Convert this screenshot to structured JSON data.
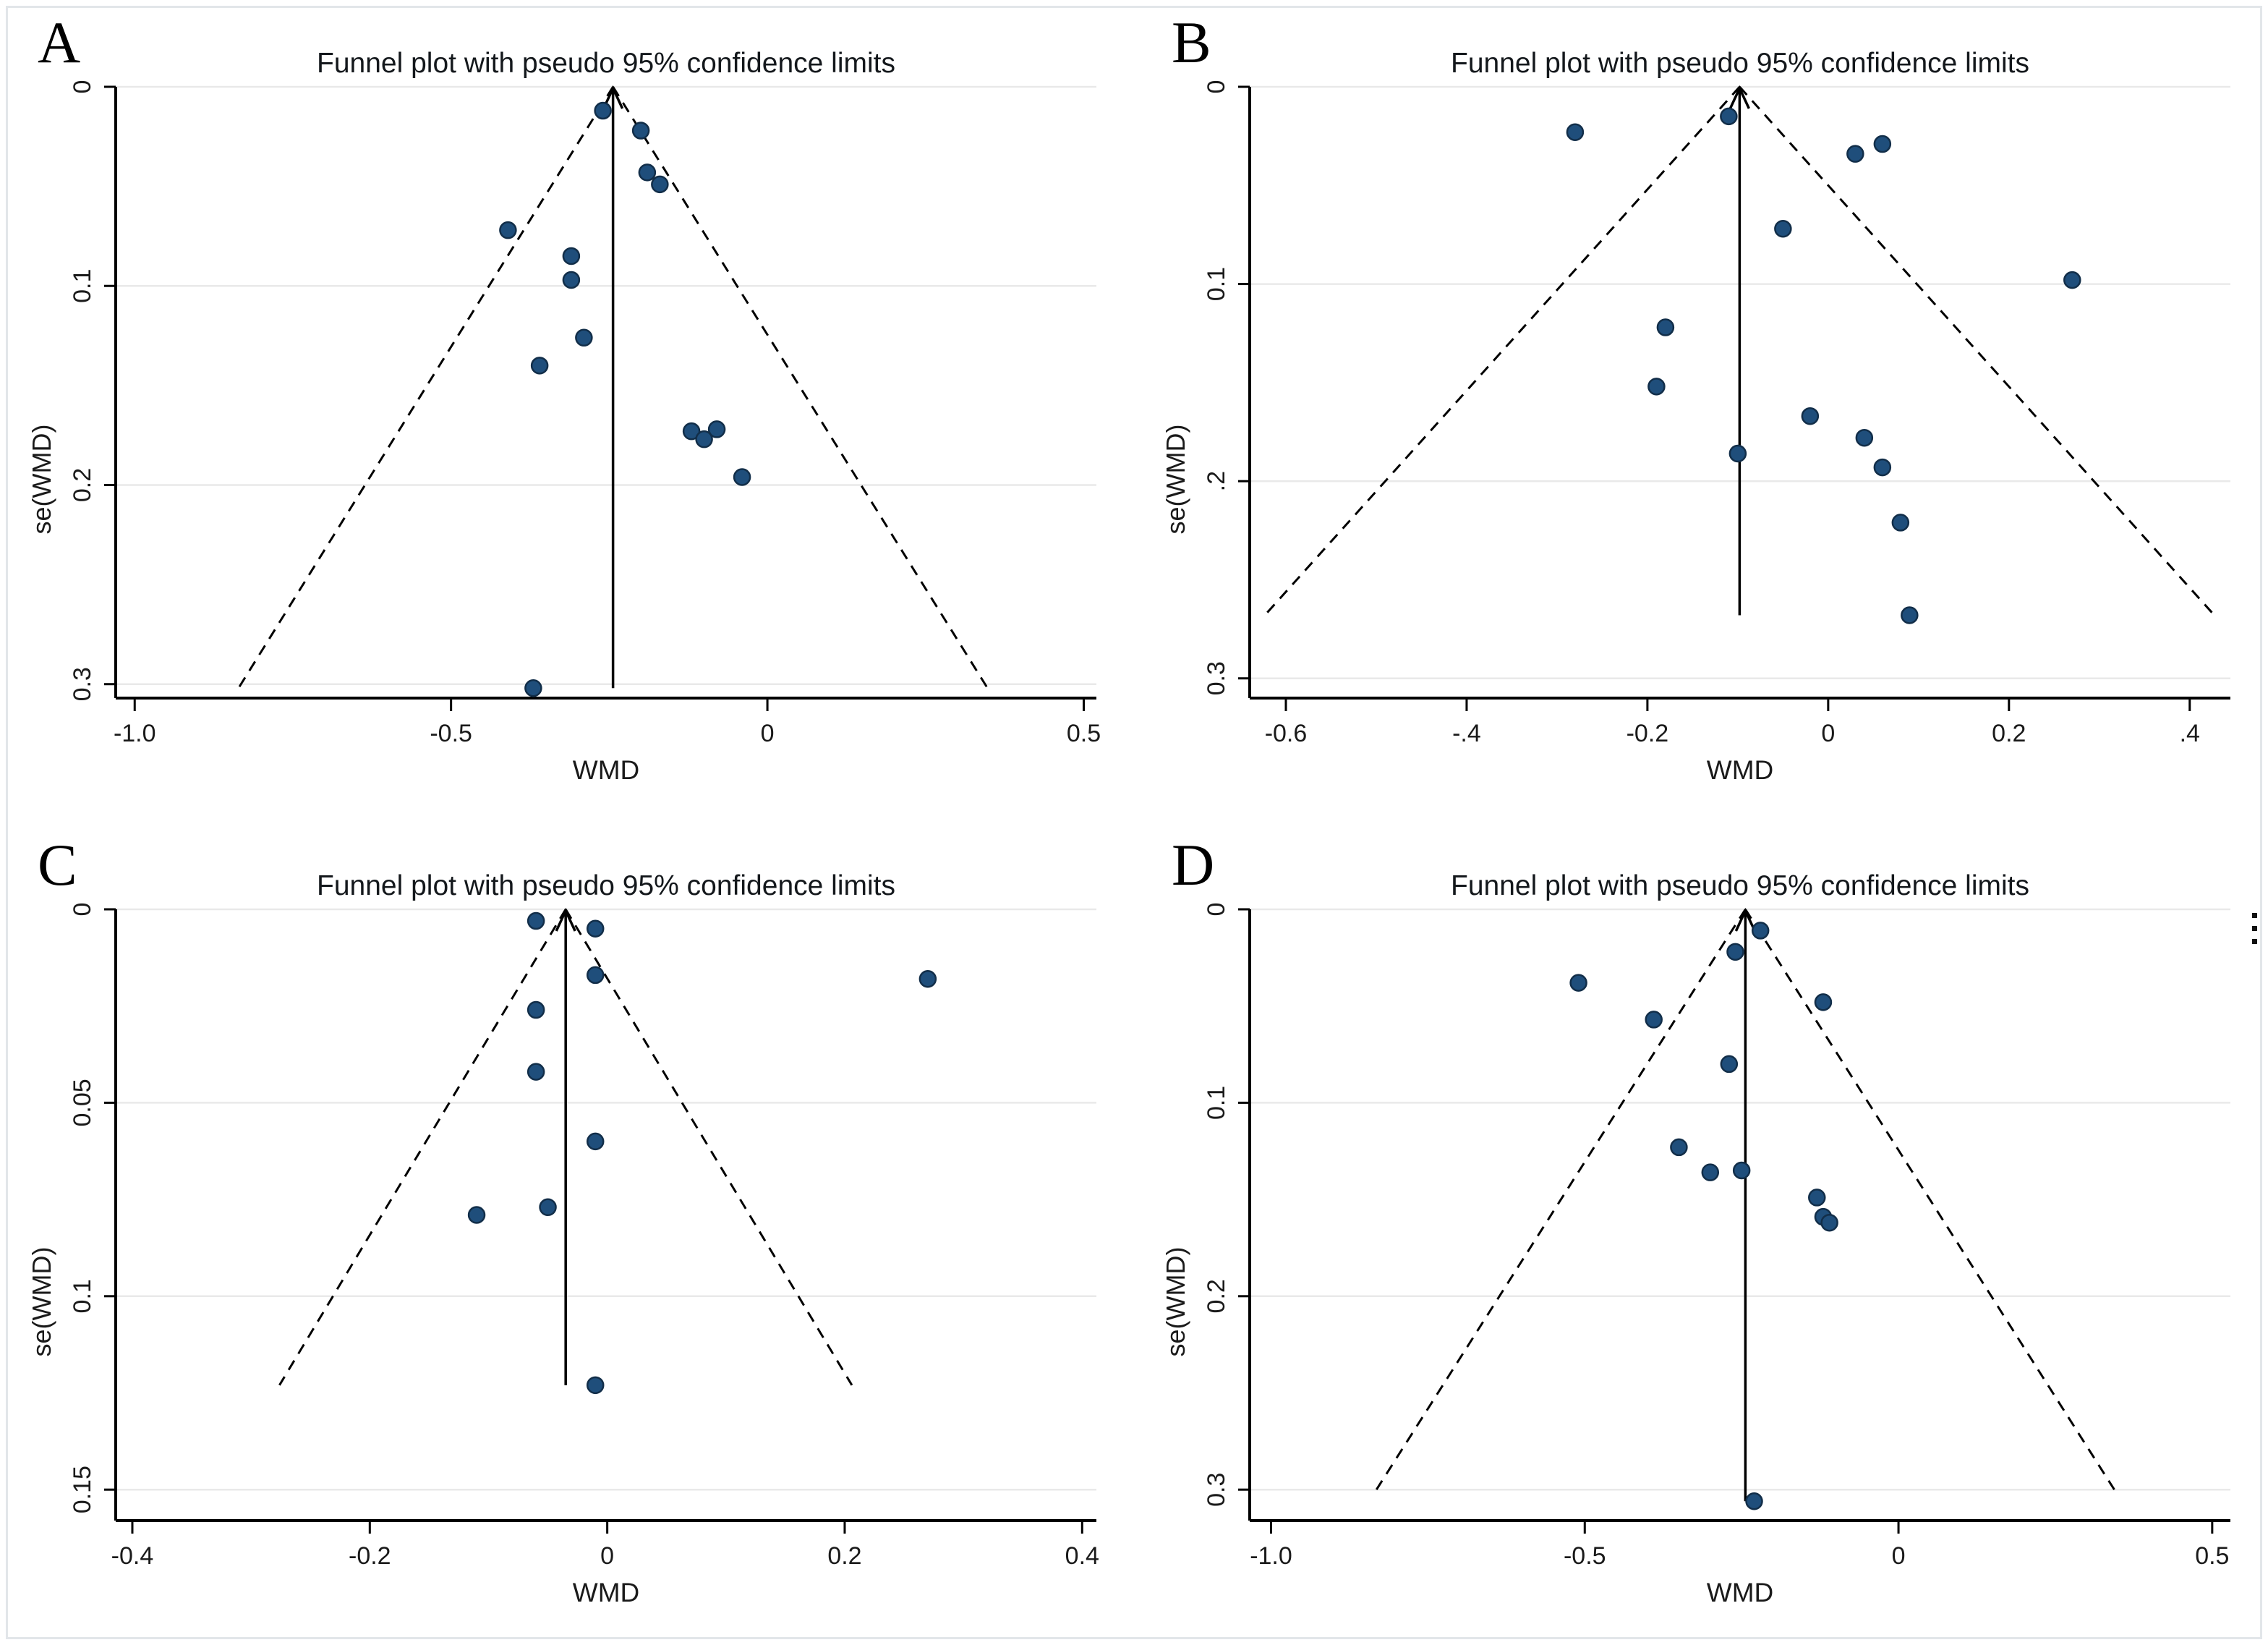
{
  "colors": {
    "dot_fill": "#1f4e7b",
    "dot_stroke": "#122e49",
    "axis": "#000000",
    "grid": "#e9e9e9",
    "text": "#1a1a1a",
    "frame": "#e2e6e9"
  },
  "chart_data": [
    {
      "panel": "A",
      "type": "scatter",
      "title": "Funnel plot with pseudo 95% confidence limits",
      "xlabel": "WMD",
      "ylabel": "se(WMD)",
      "xlim": [
        -1.03,
        0.52
      ],
      "ylim": [
        0,
        0.307
      ],
      "x_ticks": [
        {
          "v": -1.0,
          "t": "-1.0"
        },
        {
          "v": -0.5,
          "t": "-0.5"
        },
        {
          "v": 0,
          "t": "0"
        },
        {
          "v": 0.5,
          "t": "0.5"
        }
      ],
      "y_ticks": [
        {
          "v": 0,
          "t": "0"
        },
        {
          "v": 0.1,
          "t": "0.1"
        },
        {
          "v": 0.2,
          "t": "0.2"
        },
        {
          "v": 0.3,
          "t": "0.3"
        }
      ],
      "pooled_wmd": -0.244,
      "ci_multiplier": 1.96,
      "funnel_bottom_se": 0.302,
      "mid_line_bottom_se": 0.302,
      "points": [
        [
          -0.26,
          0.012
        ],
        [
          -0.2,
          0.022
        ],
        [
          -0.19,
          0.043
        ],
        [
          -0.17,
          0.049
        ],
        [
          -0.41,
          0.072
        ],
        [
          -0.31,
          0.085
        ],
        [
          -0.31,
          0.097
        ],
        [
          -0.29,
          0.126
        ],
        [
          -0.36,
          0.14
        ],
        [
          -0.12,
          0.173
        ],
        [
          -0.1,
          0.177
        ],
        [
          -0.08,
          0.172
        ],
        [
          -0.04,
          0.196
        ],
        [
          -0.37,
          0.302
        ]
      ]
    },
    {
      "panel": "B",
      "type": "scatter",
      "title": "Funnel plot with pseudo 95% confidence limits",
      "xlabel": "WMD",
      "ylabel": "se(WMD)",
      "xlim": [
        -0.64,
        0.445
      ],
      "ylim": [
        0,
        0.31
      ],
      "x_ticks": [
        {
          "v": -0.6,
          "t": "-0.6"
        },
        {
          "v": -0.4,
          "t": "-.4"
        },
        {
          "v": -0.2,
          "t": "-0.2"
        },
        {
          "v": 0,
          "t": "0"
        },
        {
          "v": 0.2,
          "t": "0.2"
        },
        {
          "v": 0.4,
          "t": ".4"
        }
      ],
      "y_ticks": [
        {
          "v": 0,
          "t": "0"
        },
        {
          "v": 0.1,
          "t": "0.1"
        },
        {
          "v": 0.2,
          "t": ".2"
        },
        {
          "v": 0.3,
          "t": "0.3"
        }
      ],
      "pooled_wmd": -0.098,
      "ci_multiplier": 1.96,
      "funnel_bottom_se": 0.268,
      "mid_line_bottom_se": 0.268,
      "points": [
        [
          -0.28,
          0.023
        ],
        [
          -0.11,
          0.015
        ],
        [
          0.03,
          0.034
        ],
        [
          0.06,
          0.029
        ],
        [
          -0.05,
          0.072
        ],
        [
          0.27,
          0.098
        ],
        [
          -0.18,
          0.122
        ],
        [
          -0.19,
          0.152
        ],
        [
          -0.02,
          0.167
        ],
        [
          0.04,
          0.178
        ],
        [
          -0.1,
          0.186
        ],
        [
          0.06,
          0.193
        ],
        [
          0.08,
          0.221
        ],
        [
          0.09,
          0.268
        ]
      ]
    },
    {
      "panel": "C",
      "type": "scatter",
      "title": "Funnel plot with pseudo 95% confidence limits",
      "xlabel": "WMD",
      "ylabel": "se(WMD)",
      "xlim": [
        -0.414,
        0.412
      ],
      "ylim": [
        0,
        0.158
      ],
      "x_ticks": [
        {
          "v": -0.4,
          "t": "-0.4"
        },
        {
          "v": -0.2,
          "t": "-0.2"
        },
        {
          "v": 0,
          "t": "0"
        },
        {
          "v": 0.2,
          "t": "0.2"
        },
        {
          "v": 0.4,
          "t": "0.4"
        }
      ],
      "y_ticks": [
        {
          "v": 0,
          "t": "0"
        },
        {
          "v": 0.05,
          "t": "0.05"
        },
        {
          "v": 0.1,
          "t": "0.1"
        },
        {
          "v": 0.15,
          "t": "0.15"
        }
      ],
      "pooled_wmd": -0.035,
      "ci_multiplier": 1.96,
      "funnel_bottom_se": 0.123,
      "mid_line_bottom_se": 0.123,
      "points": [
        [
          -0.06,
          0.003
        ],
        [
          -0.01,
          0.005
        ],
        [
          -0.01,
          0.017
        ],
        [
          0.27,
          0.018
        ],
        [
          -0.06,
          0.026
        ],
        [
          -0.06,
          0.042
        ],
        [
          -0.01,
          0.06
        ],
        [
          -0.05,
          0.077
        ],
        [
          -0.11,
          0.079
        ],
        [
          -0.01,
          0.123
        ]
      ]
    },
    {
      "panel": "D",
      "type": "scatter",
      "title": "Funnel plot with pseudo 95% confidence limits",
      "xlabel": "WMD",
      "ylabel": "se(WMD)",
      "xlim": [
        -1.034,
        0.529
      ],
      "ylim": [
        0,
        0.316
      ],
      "x_ticks": [
        {
          "v": -1.0,
          "t": "-1.0"
        },
        {
          "v": -0.5,
          "t": "-0.5"
        },
        {
          "v": 0,
          "t": "0"
        },
        {
          "v": 0.5,
          "t": "0.5"
        }
      ],
      "y_ticks": [
        {
          "v": 0,
          "t": "0"
        },
        {
          "v": 0.1,
          "t": "0.1"
        },
        {
          "v": 0.2,
          "t": "0.2"
        },
        {
          "v": 0.3,
          "t": "0.3"
        }
      ],
      "pooled_wmd": -0.244,
      "ci_multiplier": 1.96,
      "funnel_bottom_se": 0.3,
      "mid_line_bottom_se": 0.306,
      "points": [
        [
          -0.22,
          0.011
        ],
        [
          -0.26,
          0.022
        ],
        [
          -0.51,
          0.038
        ],
        [
          -0.12,
          0.048
        ],
        [
          -0.39,
          0.057
        ],
        [
          -0.27,
          0.08
        ],
        [
          -0.35,
          0.123
        ],
        [
          -0.3,
          0.136
        ],
        [
          -0.25,
          0.135
        ],
        [
          -0.13,
          0.149
        ],
        [
          -0.12,
          0.159
        ],
        [
          -0.11,
          0.162
        ],
        [
          -0.23,
          0.306
        ]
      ]
    }
  ]
}
